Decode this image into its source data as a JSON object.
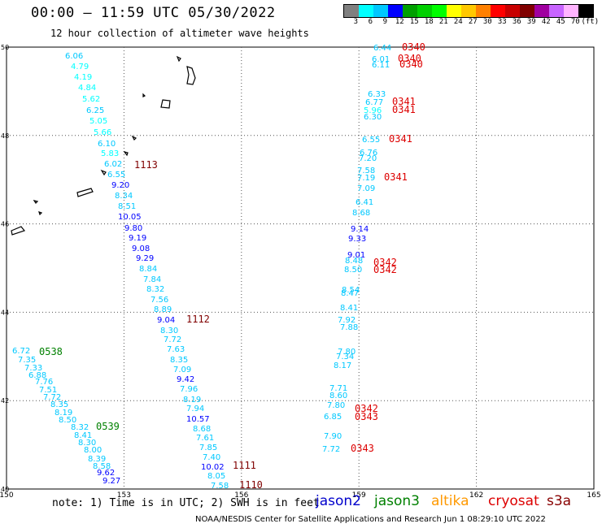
{
  "title": "00:00 – 11:59 UTC 05/30/2022",
  "subtitle": "12 hour collection of altimeter wave heights",
  "legend": {
    "colors": [
      "#808080",
      "#00ffff",
      "#00c8ff",
      "#0000ff",
      "#00a000",
      "#00d000",
      "#00ff00",
      "#ffff00",
      "#ffc800",
      "#ff8000",
      "#ff0000",
      "#c80000",
      "#800000",
      "#a000a0",
      "#c864ff",
      "#ffb4ff",
      "#000000"
    ],
    "labels": [
      "3",
      "6",
      "9",
      "12",
      "15",
      "18",
      "21",
      "24",
      "27",
      "30",
      "33",
      "36",
      "39",
      "42",
      "45",
      "70",
      "(ft)"
    ]
  },
  "axes": {
    "x_ticks": [
      "150",
      "153",
      "156",
      "159",
      "162",
      "165"
    ],
    "y_ticks": [
      "50",
      "48",
      "46",
      "44",
      "42",
      "40"
    ]
  },
  "note": "note: 1) Time is in UTC; 2) SWH is in feet",
  "satellites": [
    {
      "name": "jason2",
      "color": "#0000cc"
    },
    {
      "name": "jason3",
      "color": "#008000"
    },
    {
      "name": "altika",
      "color": "#ff9900"
    },
    {
      "name": "cryosat",
      "color": "#dd0000"
    },
    {
      "name": "s3a",
      "color": "#880000"
    }
  ],
  "footer": "NOAA/NESDIS Center for Satellite Applications and Research   Jun  1 08:29:10 UTC 2022",
  "chart_data": {
    "type": "scatter",
    "xlim": [
      150,
      165
    ],
    "ylim": [
      40,
      50
    ],
    "tracks": [
      {
        "name": "s3a",
        "time": "1113",
        "time_color": "#800000",
        "labels": [
          {
            "v": "6.06",
            "c": "#00c8ff"
          },
          {
            "v": "4.79",
            "c": "#00ffff"
          },
          {
            "v": "4.19",
            "c": "#00ffff"
          },
          {
            "v": "4.84",
            "c": "#00ffff"
          },
          {
            "v": "5.62",
            "c": "#00ffff"
          },
          {
            "v": "6.25",
            "c": "#00c8ff"
          },
          {
            "v": "5.05",
            "c": "#00ffff"
          },
          {
            "v": "5.66",
            "c": "#00ffff"
          },
          {
            "v": "6.10",
            "c": "#00c8ff"
          },
          {
            "v": "5.83",
            "c": "#00ffff"
          },
          {
            "v": "6.02",
            "c": "#00c8ff"
          },
          {
            "v": "6.55",
            "c": "#00c8ff"
          },
          {
            "v": "9.20",
            "c": "#0000ff"
          },
          {
            "v": "8.34",
            "c": "#00c8ff"
          },
          {
            "v": "8.51",
            "c": "#00c8ff"
          },
          {
            "v": "10.05",
            "c": "#0000ff"
          },
          {
            "v": "9.80",
            "c": "#0000ff"
          },
          {
            "v": "9.19",
            "c": "#0000ff"
          },
          {
            "v": "9.08",
            "c": "#0000ff"
          },
          {
            "v": "9.29",
            "c": "#0000ff"
          },
          {
            "v": "8.84",
            "c": "#00c8ff"
          },
          {
            "v": "7.84",
            "c": "#00c8ff"
          },
          {
            "v": "8.32",
            "c": "#00c8ff"
          },
          {
            "v": "7.56",
            "c": "#00c8ff"
          },
          {
            "v": "8.89",
            "c": "#00c8ff"
          },
          {
            "v": "9.04",
            "c": "#0000ff"
          }
        ]
      },
      {
        "name": "s3a",
        "time": "1112",
        "time_color": "#800000",
        "labels": [
          {
            "v": "8.30",
            "c": "#00c8ff"
          },
          {
            "v": "7.72",
            "c": "#00c8ff"
          },
          {
            "v": "7.63",
            "c": "#00c8ff"
          },
          {
            "v": "8.35",
            "c": "#00c8ff"
          },
          {
            "v": "7.09",
            "c": "#00c8ff"
          },
          {
            "v": "9.42",
            "c": "#0000ff"
          },
          {
            "v": "7.96",
            "c": "#00c8ff"
          },
          {
            "v": "8.19",
            "c": "#00c8ff"
          },
          {
            "v": "7.94",
            "c": "#00c8ff"
          },
          {
            "v": "10.57",
            "c": "#0000ff"
          },
          {
            "v": "8.68",
            "c": "#00c8ff"
          },
          {
            "v": "7.61",
            "c": "#00c8ff"
          },
          {
            "v": "7.85",
            "c": "#00c8ff"
          },
          {
            "v": "7.40",
            "c": "#00c8ff"
          },
          {
            "v": "10.02",
            "c": "#0000ff"
          },
          {
            "v": "8.05",
            "c": "#00c8ff"
          },
          {
            "v": "7.58",
            "c": "#00c8ff"
          }
        ]
      },
      {
        "name": "jason3",
        "time": "0538",
        "time_color": "#008000",
        "labels": [
          {
            "v": "6.72",
            "c": "#00c8ff"
          },
          {
            "v": "7.35",
            "c": "#00c8ff"
          },
          {
            "v": "7.33",
            "c": "#00c8ff"
          },
          {
            "v": "6.88",
            "c": "#00c8ff"
          },
          {
            "v": "7.76",
            "c": "#00c8ff"
          },
          {
            "v": "7.51",
            "c": "#00c8ff"
          },
          {
            "v": "7.72",
            "c": "#00c8ff"
          },
          {
            "v": "8.35",
            "c": "#00c8ff"
          },
          {
            "v": "8.19",
            "c": "#00c8ff"
          },
          {
            "v": "8.50",
            "c": "#00c8ff"
          },
          {
            "v": "8.32",
            "c": "#00c8ff"
          }
        ]
      },
      {
        "name": "jason3",
        "time": "0539",
        "time_color": "#008000",
        "labels": [
          {
            "v": "8.41",
            "c": "#00c8ff"
          },
          {
            "v": "8.30",
            "c": "#00c8ff"
          },
          {
            "v": "8.00",
            "c": "#00c8ff"
          },
          {
            "v": "8.39",
            "c": "#00c8ff"
          },
          {
            "v": "8.58",
            "c": "#00c8ff"
          },
          {
            "v": "9.62",
            "c": "#0000ff"
          },
          {
            "v": "9.27",
            "c": "#0000ff"
          }
        ]
      },
      {
        "name": "cryosat",
        "times": [
          "0340",
          "0340",
          "0340",
          "0341",
          "0341",
          "0341",
          "0341",
          "0342",
          "0342",
          "0342",
          "0343",
          "0343"
        ],
        "time_color": "#dd0000",
        "labels": [
          {
            "v": "6.44",
            "c": "#00c8ff"
          },
          {
            "v": "6.01",
            "c": "#00c8ff"
          },
          {
            "v": "6.11",
            "c": "#00c8ff"
          },
          {
            "v": "6.33",
            "c": "#00c8ff"
          },
          {
            "v": "6.77",
            "c": "#00c8ff"
          },
          {
            "v": "5.96",
            "c": "#00ffff"
          },
          {
            "v": "6.30",
            "c": "#00c8ff"
          },
          {
            "v": "6.55",
            "c": "#00c8ff"
          },
          {
            "v": "6.76",
            "c": "#00c8ff"
          },
          {
            "v": "7.20",
            "c": "#00c8ff"
          },
          {
            "v": "7.58",
            "c": "#00c8ff"
          },
          {
            "v": "7.19",
            "c": "#00c8ff"
          },
          {
            "v": "7.09",
            "c": "#00c8ff"
          },
          {
            "v": "6.41",
            "c": "#00c8ff"
          },
          {
            "v": "8.68",
            "c": "#00c8ff"
          },
          {
            "v": "9.14",
            "c": "#0000ff"
          },
          {
            "v": "9.33",
            "c": "#0000ff"
          },
          {
            "v": "9.01",
            "c": "#0000ff"
          },
          {
            "v": "8.48",
            "c": "#00c8ff"
          },
          {
            "v": "8.50",
            "c": "#00c8ff"
          },
          {
            "v": "8.54",
            "c": "#00c8ff"
          },
          {
            "v": "8.47",
            "c": "#00c8ff"
          },
          {
            "v": "8.41",
            "c": "#00c8ff"
          },
          {
            "v": "7.92",
            "c": "#00c8ff"
          },
          {
            "v": "7.88",
            "c": "#00c8ff"
          },
          {
            "v": "7.80",
            "c": "#00c8ff"
          },
          {
            "v": "7.34",
            "c": "#00c8ff"
          },
          {
            "v": "8.17",
            "c": "#00c8ff"
          },
          {
            "v": "7.71",
            "c": "#00c8ff"
          },
          {
            "v": "8.60",
            "c": "#00c8ff"
          },
          {
            "v": "7.80",
            "c": "#00c8ff"
          },
          {
            "v": "6.85",
            "c": "#00c8ff"
          },
          {
            "v": "7.90",
            "c": "#00c8ff"
          },
          {
            "v": "7.72",
            "c": "#00c8ff"
          }
        ]
      },
      {
        "name": "cryosat",
        "time": "1110",
        "time_color": "#800000",
        "labels": []
      },
      {
        "name": "cryosat",
        "time": "1111",
        "time_color": "#800000",
        "labels": []
      }
    ]
  }
}
